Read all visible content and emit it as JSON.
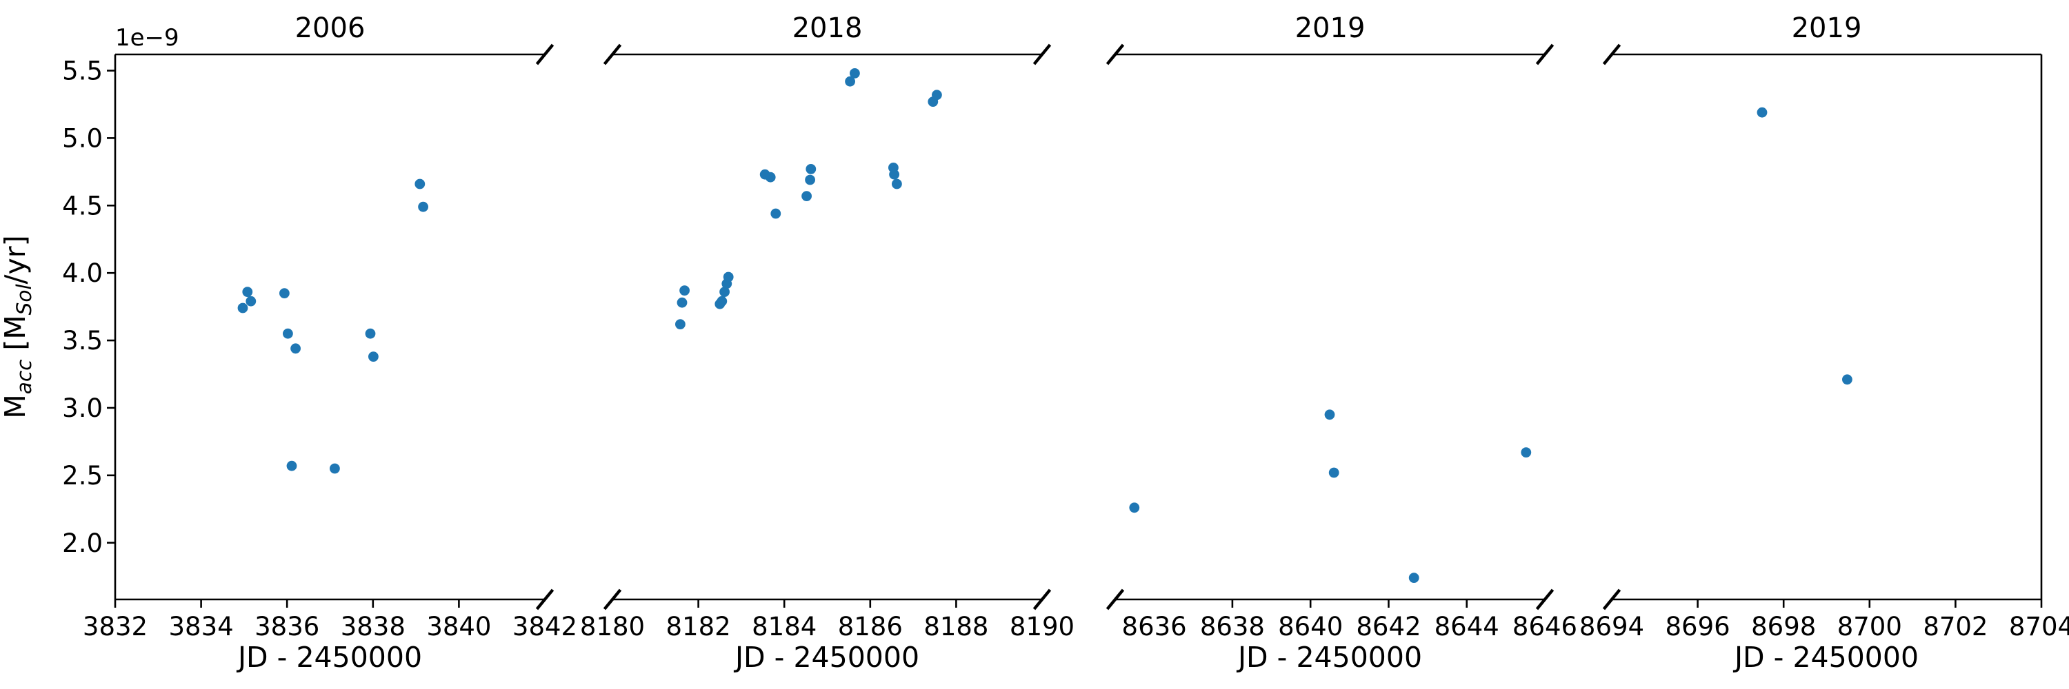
{
  "chart_data": {
    "type": "scatter",
    "figure": {
      "offset_text": "1e−9",
      "ylabel_raw": "M_acc [M_Sol/yr]",
      "ylabel_parts": [
        {
          "t": "M",
          "style": "normal"
        },
        {
          "t": "acc",
          "style": "sub-italic"
        },
        {
          "t": " [M",
          "style": "normal"
        },
        {
          "t": "Sol",
          "style": "sub-italic"
        },
        {
          "t": "/yr]",
          "style": "normal"
        }
      ],
      "xlabel": "JD - 2450000",
      "ylim": [
        1.58,
        5.62
      ],
      "yticks": [
        2.0,
        2.5,
        3.0,
        3.5,
        4.0,
        4.5,
        5.0,
        5.5
      ],
      "ytick_labels": [
        "2.0",
        "2.5",
        "3.0",
        "3.5",
        "4.0",
        "4.5",
        "5.0",
        "5.5"
      ],
      "marker_color": "#1f77b4",
      "axis_color": "#000000",
      "background": "#ffffff",
      "grid": false,
      "legend_position": "none"
    },
    "panels": [
      {
        "title": "2006",
        "xlabel": "JD - 2450000",
        "xlim": [
          3832,
          3842
        ],
        "xticks": [
          3832,
          3834,
          3836,
          3838,
          3840,
          3842
        ],
        "broken_left": false,
        "broken_right": true,
        "points": [
          [
            3834.97,
            3.74
          ],
          [
            3835.08,
            3.86
          ],
          [
            3835.16,
            3.79
          ],
          [
            3835.94,
            3.85
          ],
          [
            3836.02,
            3.55
          ],
          [
            3836.11,
            2.57
          ],
          [
            3836.2,
            3.44
          ],
          [
            3837.11,
            2.55
          ],
          [
            3837.94,
            3.55
          ],
          [
            3838.01,
            3.38
          ],
          [
            3839.09,
            4.66
          ],
          [
            3839.17,
            4.49
          ]
        ]
      },
      {
        "title": "2018",
        "xlabel": "JD - 2450000",
        "xlim": [
          8180,
          8190
        ],
        "xticks": [
          8180,
          8182,
          8184,
          8186,
          8188,
          8190
        ],
        "broken_left": true,
        "broken_right": true,
        "points": [
          [
            8181.58,
            3.62
          ],
          [
            8181.62,
            3.78
          ],
          [
            8181.68,
            3.87
          ],
          [
            8182.5,
            3.77
          ],
          [
            8182.55,
            3.79
          ],
          [
            8182.61,
            3.86
          ],
          [
            8182.66,
            3.92
          ],
          [
            8182.7,
            3.97
          ],
          [
            8183.55,
            4.73
          ],
          [
            8183.68,
            4.71
          ],
          [
            8183.8,
            4.44
          ],
          [
            8184.52,
            4.57
          ],
          [
            8184.6,
            4.69
          ],
          [
            8184.62,
            4.77
          ],
          [
            8185.53,
            5.42
          ],
          [
            8185.64,
            5.48
          ],
          [
            8186.54,
            4.78
          ],
          [
            8186.56,
            4.73
          ],
          [
            8186.62,
            4.66
          ],
          [
            8187.46,
            5.27
          ],
          [
            8187.55,
            5.32
          ]
        ]
      },
      {
        "title": "2019",
        "xlabel": "JD - 2450000",
        "xlim": [
          8635,
          8646
        ],
        "xticks": [
          8636,
          8638,
          8640,
          8642,
          8644,
          8646
        ],
        "broken_left": true,
        "broken_right": true,
        "points": [
          [
            8635.49,
            2.26
          ],
          [
            8640.49,
            2.95
          ],
          [
            8640.6,
            2.52
          ],
          [
            8642.65,
            1.74
          ],
          [
            8645.52,
            2.67
          ]
        ]
      },
      {
        "title": "2019",
        "xlabel": "JD - 2450000",
        "xlim": [
          8694,
          8704
        ],
        "xticks": [
          8694,
          8696,
          8698,
          8700,
          8702,
          8704
        ],
        "broken_left": true,
        "broken_right": false,
        "points": [
          [
            8697.5,
            5.19
          ],
          [
            8699.48,
            3.21
          ]
        ]
      }
    ]
  }
}
